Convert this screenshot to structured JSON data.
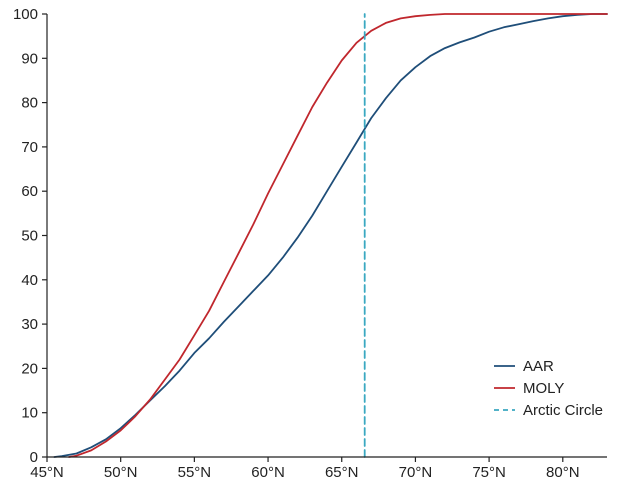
{
  "chart_data": {
    "type": "line",
    "title": "",
    "xlabel": "",
    "ylabel": "",
    "xlim": [
      45,
      83
    ],
    "ylim": [
      0,
      100
    ],
    "x_ticks": [
      {
        "value": 45,
        "label": "45°N"
      },
      {
        "value": 50,
        "label": "50°N"
      },
      {
        "value": 55,
        "label": "55°N"
      },
      {
        "value": 60,
        "label": "60°N"
      },
      {
        "value": 65,
        "label": "65°N"
      },
      {
        "value": 70,
        "label": "70°N"
      },
      {
        "value": 75,
        "label": "75°N"
      },
      {
        "value": 80,
        "label": "80°N"
      }
    ],
    "y_ticks": [
      {
        "value": 0,
        "label": "0"
      },
      {
        "value": 10,
        "label": "10"
      },
      {
        "value": 20,
        "label": "20"
      },
      {
        "value": 30,
        "label": "30"
      },
      {
        "value": 40,
        "label": "40"
      },
      {
        "value": 50,
        "label": "50"
      },
      {
        "value": 60,
        "label": "60"
      },
      {
        "value": 70,
        "label": "70"
      },
      {
        "value": 80,
        "label": "80"
      },
      {
        "value": 90,
        "label": "90"
      },
      {
        "value": 100,
        "label": "100"
      }
    ],
    "grid": false,
    "legend_position": "bottom-right",
    "series": [
      {
        "name": "AAR",
        "color": "#1f4e79",
        "style": "solid",
        "x": [
          45.5,
          46.0,
          47.0,
          48.0,
          49.0,
          50.0,
          51.0,
          52.0,
          53.0,
          54.0,
          55.0,
          56.0,
          57.0,
          58.0,
          59.0,
          60.0,
          61.0,
          62.0,
          63.0,
          64.0,
          65.0,
          66.0,
          67.0,
          68.0,
          69.0,
          70.0,
          71.0,
          72.0,
          73.0,
          74.0,
          75.0,
          76.0,
          77.0,
          78.0,
          79.0,
          80.0,
          81.0,
          82.0,
          83.0
        ],
        "values": [
          0,
          0.2,
          0.8,
          2.2,
          4.0,
          6.5,
          9.5,
          12.8,
          16.0,
          19.5,
          23.5,
          26.8,
          30.5,
          34.0,
          37.5,
          41.0,
          45.0,
          49.5,
          54.5,
          60.0,
          65.5,
          71.0,
          76.5,
          81.0,
          85.0,
          88.0,
          90.5,
          92.3,
          93.6,
          94.7,
          96.0,
          97.0,
          97.7,
          98.4,
          99.0,
          99.5,
          99.8,
          100,
          100
        ]
      },
      {
        "name": "MOLY",
        "color": "#c0272d",
        "style": "solid",
        "x": [
          46.5,
          47.0,
          48.0,
          49.0,
          50.0,
          51.0,
          52.0,
          53.0,
          54.0,
          55.0,
          56.0,
          57.0,
          58.0,
          59.0,
          60.0,
          61.0,
          62.0,
          63.0,
          64.0,
          65.0,
          66.0,
          67.0,
          68.0,
          69.0,
          70.0,
          71.0,
          72.0,
          73.0,
          74.0,
          76.0,
          78.0,
          80.0,
          83.0
        ],
        "values": [
          0,
          0.3,
          1.5,
          3.5,
          6.0,
          9.2,
          13.0,
          17.5,
          22.0,
          27.5,
          33.0,
          39.5,
          46.0,
          52.5,
          59.5,
          66.0,
          72.5,
          79.0,
          84.5,
          89.5,
          93.5,
          96.2,
          98.0,
          99.0,
          99.5,
          99.8,
          100,
          100,
          100,
          100,
          100,
          100,
          100
        ]
      },
      {
        "name": "Arctic Circle",
        "color": "#3aa8c1",
        "style": "dashed",
        "x": [
          66.56,
          66.56
        ],
        "values": [
          0,
          100
        ]
      }
    ]
  }
}
